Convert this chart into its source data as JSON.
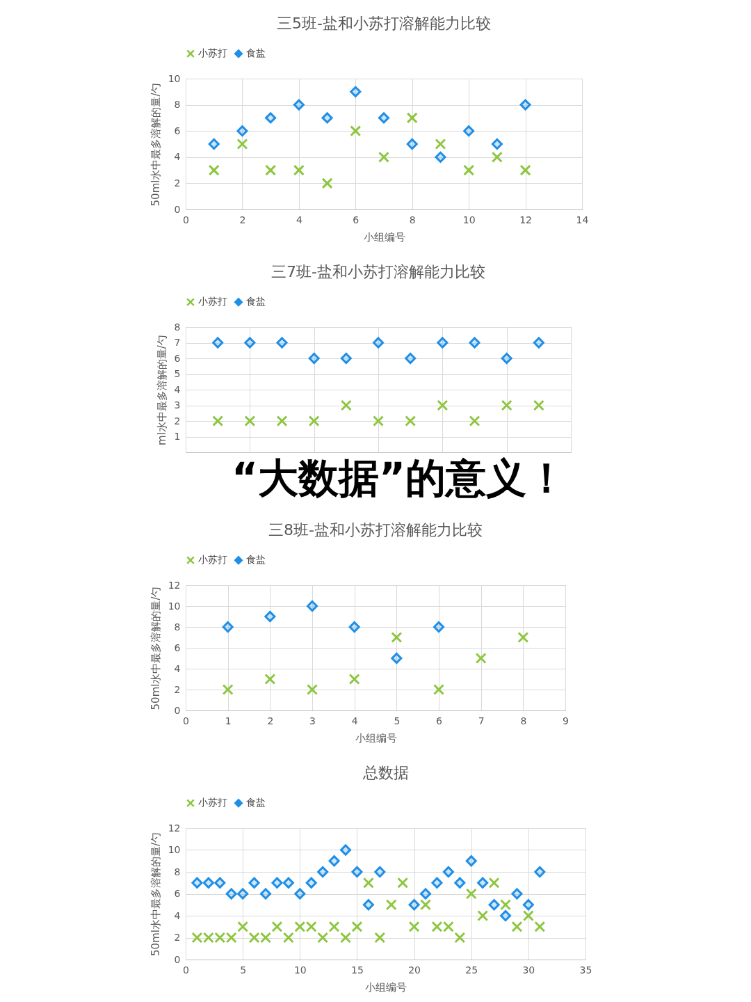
{
  "chart_data": [
    {
      "type": "scatter",
      "title": "三5班-盐和小苏打溶解能力比较",
      "xlabel": "小组编号",
      "ylabel": "50ml水中最多溶解的量/勺",
      "x": [
        1,
        2,
        3,
        4,
        5,
        6,
        7,
        8,
        9,
        10,
        11,
        12
      ],
      "series": [
        {
          "name": "小苏打",
          "color": "#8dc63f",
          "marker": "cross",
          "values": [
            3,
            5,
            3,
            3,
            2,
            6,
            4,
            7,
            5,
            3,
            4,
            3
          ]
        },
        {
          "name": "食盐",
          "color": "#1f8fe6",
          "marker": "diamond",
          "values": [
            5,
            6,
            7,
            8,
            7,
            9,
            7,
            5,
            4,
            6,
            5,
            8
          ]
        }
      ],
      "xlim": [
        0,
        14
      ],
      "xticks": [
        0,
        2,
        4,
        6,
        8,
        10,
        12,
        14
      ],
      "ylim": [
        0,
        10
      ],
      "yticks": [
        0,
        2,
        4,
        6,
        8,
        10
      ],
      "grid": true,
      "legend": "top"
    },
    {
      "type": "scatter",
      "title": "三7班-盐和小苏打溶解能力比较",
      "ylabel": "ml水中最多溶解的量/勺",
      "categories": [
        null,
        null,
        null,
        null,
        null,
        null,
        null,
        null,
        null,
        null,
        null
      ],
      "series": [
        {
          "name": "小苏打",
          "color": "#8dc63f",
          "marker": "cross",
          "values": [
            2,
            2,
            2,
            2,
            3,
            2,
            2,
            3,
            2,
            3,
            3
          ]
        },
        {
          "name": "食盐",
          "color": "#1f8fe6",
          "marker": "diamond",
          "values": [
            7,
            7,
            7,
            6,
            6,
            7,
            6,
            7,
            7,
            6,
            7
          ]
        }
      ],
      "ylim": [
        0,
        8
      ],
      "yticks": [
        1,
        2,
        3,
        4,
        5,
        6,
        7,
        8
      ],
      "grid": true,
      "legend": "top",
      "tick_labels": "y",
      "annotations": [
        "“大数据”的意义！"
      ]
    },
    {
      "type": "scatter",
      "title": "三8班-盐和小苏打溶解能力比较",
      "xlabel": "小组编号",
      "ylabel": "50ml水中最多溶解的量/勺",
      "x": [
        1,
        2,
        3,
        4,
        5,
        6,
        7,
        8
      ],
      "series": [
        {
          "name": "小苏打",
          "color": "#8dc63f",
          "marker": "cross",
          "values": [
            2,
            3,
            2,
            3,
            7,
            2,
            5,
            7
          ]
        },
        {
          "name": "食盐",
          "color": "#1f8fe6",
          "marker": "diamond",
          "values": [
            8,
            9,
            10,
            8,
            5,
            8,
            null,
            null
          ]
        }
      ],
      "xlim": [
        0,
        9
      ],
      "xticks": [
        0,
        1,
        2,
        3,
        4,
        5,
        6,
        7,
        8,
        9
      ],
      "ylim": [
        0,
        12
      ],
      "yticks": [
        0,
        2,
        4,
        6,
        8,
        10,
        12
      ],
      "grid": true,
      "legend": "top"
    },
    {
      "type": "scatter",
      "title": "总数据",
      "xlabel": "小组编号",
      "ylabel": "50ml水中最多溶解的量/勺",
      "x": [
        1,
        2,
        3,
        4,
        5,
        6,
        7,
        8,
        9,
        10,
        11,
        12,
        13,
        14,
        15,
        16,
        17,
        18,
        19,
        20,
        21,
        22,
        23,
        24,
        25,
        26,
        27,
        28,
        29,
        30,
        31
      ],
      "series": [
        {
          "name": "小苏打",
          "color": "#8dc63f",
          "marker": "cross",
          "values": [
            2,
            2,
            2,
            2,
            3,
            2,
            2,
            3,
            2,
            3,
            3,
            2,
            3,
            2,
            3,
            7,
            2,
            5,
            7,
            3,
            5,
            3,
            3,
            2,
            6,
            4,
            7,
            5,
            3,
            4,
            3
          ]
        },
        {
          "name": "食盐",
          "color": "#1f8fe6",
          "marker": "diamond",
          "values": [
            7,
            7,
            7,
            6,
            6,
            7,
            6,
            7,
            7,
            6,
            7,
            8,
            9,
            10,
            8,
            5,
            8,
            null,
            null,
            5,
            6,
            7,
            8,
            7,
            9,
            7,
            5,
            4,
            6,
            5,
            8
          ]
        }
      ],
      "xlim": [
        0,
        35
      ],
      "xticks": [
        0,
        5,
        10,
        15,
        20,
        25,
        30,
        35
      ],
      "ylim": [
        0,
        12
      ],
      "yticks": [
        0,
        2,
        4,
        6,
        8,
        10,
        12
      ],
      "grid": true,
      "legend": "top"
    }
  ]
}
